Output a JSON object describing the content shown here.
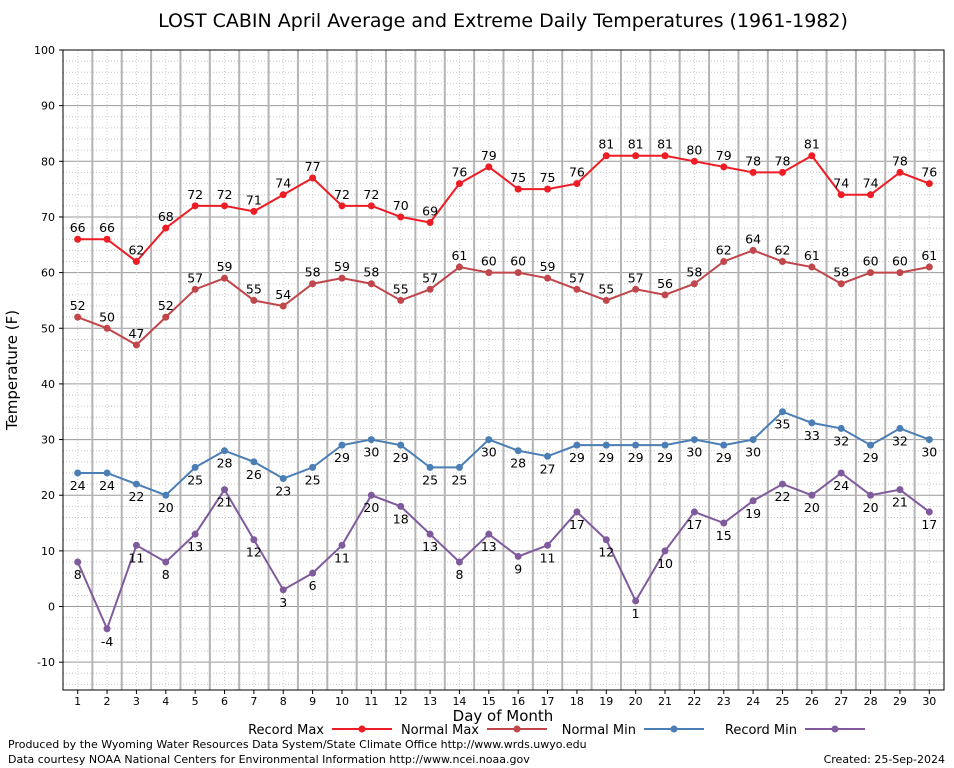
{
  "footer": {
    "produced_by": "Produced by the Wyoming Water Resources Data System/State Climate Office http://www.wrds.uwyo.edu",
    "courtesy": "Data courtesy NOAA National Centers for Environmental Information http://www.ncei.noaa.gov",
    "created": "Created:  25-Sep-2024"
  },
  "chart_data": {
    "type": "line",
    "title": "LOST CABIN April Average and Extreme Daily Temperatures (1961-1982)",
    "xlabel": "Day of Month",
    "ylabel": "Temperature (F)",
    "x": [
      1,
      2,
      3,
      4,
      5,
      6,
      7,
      8,
      9,
      10,
      11,
      12,
      13,
      14,
      15,
      16,
      17,
      18,
      19,
      20,
      21,
      22,
      23,
      24,
      25,
      26,
      27,
      28,
      29,
      30
    ],
    "ylim": [
      -15,
      100
    ],
    "yticks": [
      -10,
      0,
      10,
      20,
      30,
      40,
      50,
      60,
      70,
      80,
      90,
      100
    ],
    "grid": true,
    "legend_position": "bottom",
    "series": [
      {
        "name": "Record Max",
        "color": "#ee1c25",
        "label_pos": "above",
        "values": [
          66,
          66,
          62,
          68,
          72,
          72,
          71,
          74,
          77,
          72,
          72,
          70,
          69,
          76,
          79,
          75,
          75,
          76,
          81,
          81,
          81,
          80,
          79,
          78,
          78,
          81,
          74,
          74,
          78,
          76
        ]
      },
      {
        "name": "Normal Max",
        "color": "#c0464b",
        "label_pos": "above",
        "values": [
          52,
          50,
          47,
          52,
          57,
          59,
          55,
          54,
          58,
          59,
          58,
          55,
          57,
          61,
          60,
          60,
          59,
          57,
          55,
          57,
          56,
          58,
          62,
          64,
          62,
          61,
          58,
          60,
          60,
          61
        ]
      },
      {
        "name": "Normal Min",
        "color": "#4a7eb5",
        "label_pos": "below",
        "values": [
          24,
          24,
          22,
          20,
          25,
          28,
          26,
          23,
          25,
          29,
          30,
          29,
          25,
          25,
          30,
          28,
          27,
          29,
          29,
          29,
          29,
          30,
          29,
          30,
          35,
          33,
          32,
          29,
          32,
          30
        ]
      },
      {
        "name": "Record Min",
        "color": "#7f5b9d",
        "label_pos": "below",
        "values": [
          8,
          -4,
          11,
          8,
          13,
          21,
          12,
          3,
          6,
          11,
          20,
          18,
          13,
          8,
          13,
          9,
          11,
          17,
          12,
          1,
          10,
          17,
          15,
          19,
          22,
          20,
          24,
          20,
          21,
          17
        ]
      }
    ]
  }
}
